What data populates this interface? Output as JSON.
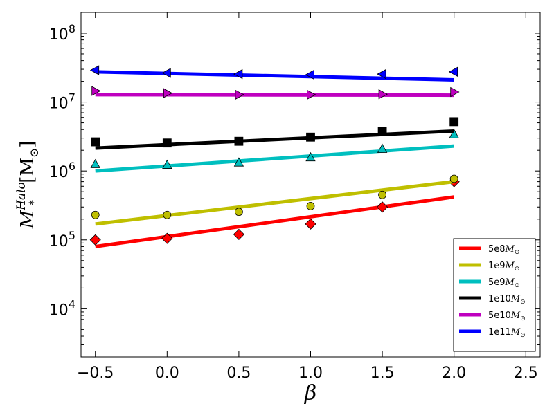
{
  "chart_data": {
    "type": "scatter",
    "xlabel": "β",
    "ylabel": {
      "symbol": "M",
      "subscript": "*",
      "superscript": "Halo",
      "unit": "[M",
      "unit_sub": "⊙",
      "unit_close": "]"
    },
    "xlim": [
      -0.6,
      2.6
    ],
    "ylim": [
      2000,
      200000000
    ],
    "yscale": "log",
    "x_ticks": [
      -0.5,
      0.0,
      0.5,
      1.0,
      1.5,
      2.0,
      2.5
    ],
    "x_tick_labels": [
      "−0.5",
      "0.0",
      "0.5",
      "1.0",
      "1.5",
      "2.0",
      "2.5"
    ],
    "y_ticks": [
      10000,
      100000,
      1000000,
      10000000,
      100000000
    ],
    "y_tick_labels": [
      {
        "base": "10",
        "exp": "4"
      },
      {
        "base": "10",
        "exp": "5"
      },
      {
        "base": "10",
        "exp": "6"
      },
      {
        "base": "10",
        "exp": "7"
      },
      {
        "base": "10",
        "exp": "8"
      }
    ],
    "grid": false,
    "legend_position": "lower-right",
    "series": [
      {
        "name": "5e8",
        "name_suffix": "M",
        "name_sub": "⊙",
        "color": "#ff0000",
        "marker": "diamond",
        "points_x": [
          -0.5,
          0.0,
          0.5,
          1.0,
          1.5,
          2.0
        ],
        "points_y": [
          100000,
          105000,
          120000,
          170000,
          300000,
          700000
        ],
        "fit_x": [
          -0.5,
          2.0
        ],
        "fit_y": [
          80000,
          420000
        ]
      },
      {
        "name": "1e9",
        "name_suffix": "M",
        "name_sub": "⊙",
        "color": "#bfbf00",
        "marker": "circle",
        "points_x": [
          -0.5,
          0.0,
          0.5,
          1.0,
          1.5,
          2.0
        ],
        "points_y": [
          230000,
          230000,
          255000,
          310000,
          450000,
          770000
        ],
        "fit_x": [
          -0.5,
          2.0
        ],
        "fit_y": [
          170000,
          700000
        ]
      },
      {
        "name": "5e9",
        "name_suffix": "M",
        "name_sub": "⊙",
        "color": "#00bfbf",
        "marker": "triangle-up",
        "points_x": [
          -0.5,
          0.0,
          0.5,
          1.0,
          1.5,
          2.0
        ],
        "points_y": [
          1250000,
          1220000,
          1320000,
          1570000,
          2080000,
          3400000
        ],
        "fit_x": [
          -0.5,
          2.0
        ],
        "fit_y": [
          1000000,
          2300000
        ]
      },
      {
        "name": "1e10",
        "name_suffix": "M",
        "name_sub": "⊙",
        "color": "#000000",
        "marker": "square",
        "points_x": [
          -0.5,
          0.0,
          0.5,
          1.0,
          1.5,
          2.0
        ],
        "points_y": [
          2650000,
          2550000,
          2700000,
          3100000,
          3800000,
          5200000
        ],
        "fit_x": [
          -0.5,
          2.0
        ],
        "fit_y": [
          2150000,
          3800000
        ]
      },
      {
        "name": "5e10",
        "name_suffix": "M",
        "name_sub": "⊙",
        "color": "#bf00bf",
        "marker": "triangle-right",
        "points_x": [
          -0.5,
          0.0,
          0.5,
          1.0,
          1.5,
          2.0
        ],
        "points_y": [
          14500000,
          13500000,
          12800000,
          12800000,
          13000000,
          14000000
        ],
        "fit_x": [
          -0.5,
          2.0
        ],
        "fit_y": [
          12800000,
          12600000
        ]
      },
      {
        "name": "1e11",
        "name_suffix": "M",
        "name_sub": "⊙",
        "color": "#0000ff",
        "marker": "triangle-left",
        "points_x": [
          -0.5,
          0.0,
          0.5,
          1.0,
          1.5,
          2.0
        ],
        "points_y": [
          29000000,
          26500000,
          25500000,
          25000000,
          25500000,
          27500000
        ],
        "fit_x": [
          -0.5,
          2.0
        ],
        "fit_y": [
          27500000,
          21000000
        ]
      }
    ]
  }
}
